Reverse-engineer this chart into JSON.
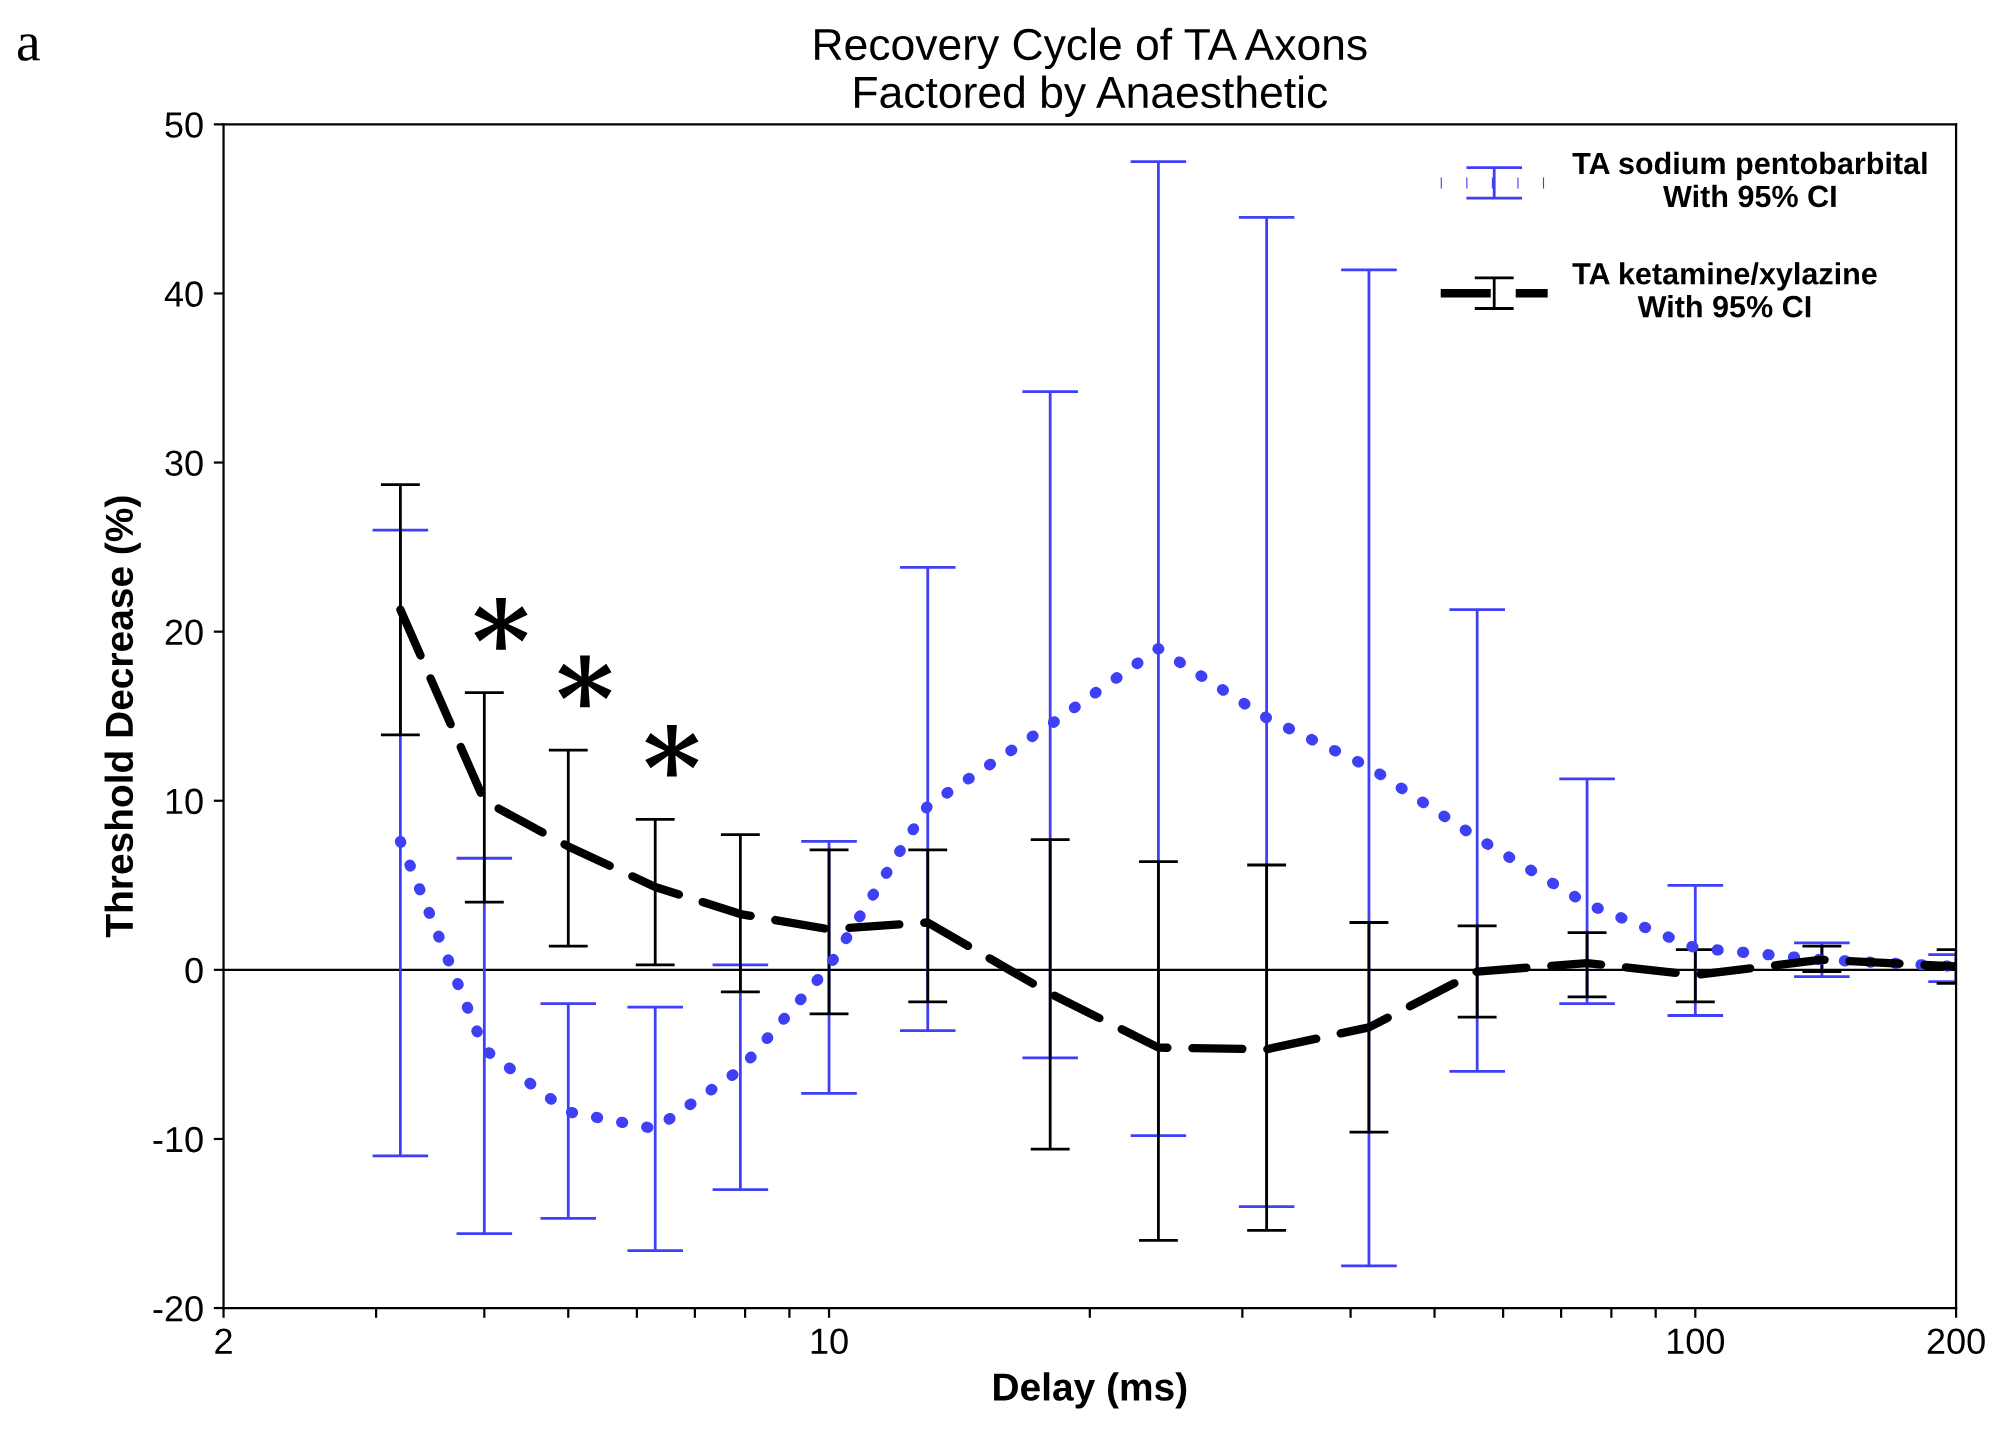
{
  "chart_data": {
    "type": "line",
    "title": "Recovery Cycle of TA Axons\nFactored by Anaesthetic",
    "xlabel": "Delay (ms)",
    "ylabel": "Threshold Decrease (%)",
    "annotations": [
      "a",
      "*",
      "*",
      "*"
    ],
    "x": [
      3.2,
      4,
      5,
      6.3,
      7.9,
      10,
      13,
      18,
      24,
      32,
      42,
      56,
      75,
      100,
      140,
      200
    ],
    "series": [
      {
        "name": "TA sodium pentobarbital\nWith 95% CI",
        "color": "#3f3ff5",
        "line_style": "dotted",
        "values": [
          7.6,
          -4.7,
          -8.4,
          -9.4,
          -5.9,
          0.2,
          9.7,
          14.5,
          19.0,
          14.9,
          12.0,
          7.8,
          3.9,
          1.3,
          0.6,
          0.2
        ],
        "errors": [
          [
            -11.0,
            26.0
          ],
          [
            -15.6,
            6.6
          ],
          [
            -14.7,
            -2.0
          ],
          [
            -16.6,
            -2.2
          ],
          [
            -13.0,
            0.3
          ],
          [
            -7.3,
            7.6
          ],
          [
            -3.6,
            23.8
          ],
          [
            -5.2,
            34.2
          ],
          [
            -9.8,
            47.8
          ],
          [
            -14.0,
            44.5
          ],
          [
            -17.5,
            41.4
          ],
          [
            -6.0,
            21.3
          ],
          [
            -2.0,
            11.3
          ],
          [
            -2.7,
            5.0
          ],
          [
            -0.4,
            1.6
          ],
          [
            -0.7,
            0.9
          ]
        ]
      },
      {
        "name": "TA ketamine/xylazine\nWith 95% CI",
        "color": "#000000",
        "line_style": "dashed",
        "values": [
          21.3,
          10.0,
          7.3,
          4.9,
          3.3,
          2.4,
          2.8,
          -1.4,
          -4.6,
          -4.7,
          -3.4,
          -0.1,
          0.4,
          -0.3,
          0.6,
          0.2
        ],
        "errors": [
          [
            13.9,
            28.7
          ],
          [
            4.0,
            16.4
          ],
          [
            1.4,
            13.0
          ],
          [
            0.3,
            8.9
          ],
          [
            -1.3,
            8.0
          ],
          [
            -2.6,
            7.1
          ],
          [
            -1.9,
            7.1
          ],
          [
            -10.6,
            7.7
          ],
          [
            -16.0,
            6.4
          ],
          [
            -15.4,
            6.2
          ],
          [
            -9.6,
            2.8
          ],
          [
            -2.8,
            2.6
          ],
          [
            -1.6,
            2.2
          ],
          [
            -1.9,
            1.2
          ],
          [
            -0.1,
            1.4
          ],
          [
            -0.8,
            1.2
          ]
        ]
      }
    ],
    "log": "x",
    "xlim": [
      2,
      200
    ],
    "xticks": [
      2,
      {
        "value": 3,
        "label": null
      },
      {
        "value": 4,
        "label": null
      },
      {
        "value": 5,
        "label": null
      },
      {
        "value": 6,
        "label": null
      },
      {
        "value": 7,
        "label": null
      },
      {
        "value": 8,
        "label": null
      },
      {
        "value": 9,
        "label": null
      },
      10,
      {
        "value": 20,
        "label": null
      },
      {
        "value": 30,
        "label": null
      },
      {
        "value": 40,
        "label": null
      },
      {
        "value": 50,
        "label": null
      },
      {
        "value": 60,
        "label": null
      },
      {
        "value": 70,
        "label": null
      },
      {
        "value": 80,
        "label": null
      },
      {
        "value": 90,
        "label": null
      },
      100,
      200
    ],
    "ylim": [
      -20,
      50
    ],
    "yticks": [
      -20,
      -10,
      0,
      10,
      20,
      30,
      40,
      50
    ],
    "ref_lines": [
      {
        "axis": "y",
        "value": 0,
        "color": "#000000"
      }
    ],
    "grid": false,
    "legend": "top right"
  }
}
